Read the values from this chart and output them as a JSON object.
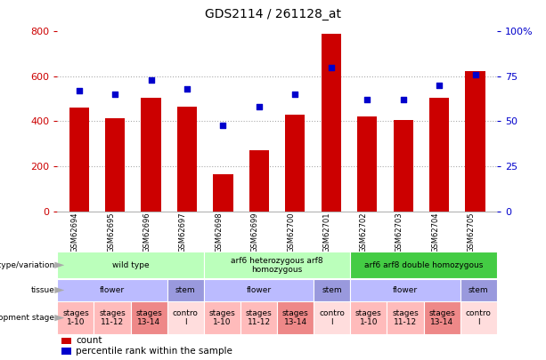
{
  "title": "GDS2114 / 261128_at",
  "samples": [
    "GSM62694",
    "GSM62695",
    "GSM62696",
    "GSM62697",
    "GSM62698",
    "GSM62699",
    "GSM62700",
    "GSM62701",
    "GSM62702",
    "GSM62703",
    "GSM62704",
    "GSM62705"
  ],
  "counts": [
    460,
    415,
    505,
    465,
    165,
    270,
    430,
    790,
    420,
    405,
    505,
    625
  ],
  "percentiles": [
    67,
    65,
    73,
    68,
    48,
    58,
    65,
    80,
    62,
    62,
    70,
    76
  ],
  "ylim_left": [
    0,
    800
  ],
  "ylim_right": [
    0,
    100
  ],
  "yticks_left": [
    0,
    200,
    400,
    600,
    800
  ],
  "yticks_right": [
    0,
    25,
    50,
    75,
    100
  ],
  "bar_color": "#cc0000",
  "dot_color": "#0000cc",
  "axis_color_left": "#cc0000",
  "axis_color_right": "#0000cc",
  "bg_color": "#ffffff",
  "grid_color": "#aaaaaa",
  "genotype_rows": [
    {
      "label": "wild type",
      "start": 0,
      "end": 4,
      "color": "#bbffbb"
    },
    {
      "label": "arf6 heterozygous arf8\nhomozygous",
      "start": 4,
      "end": 8,
      "color": "#bbffbb"
    },
    {
      "label": "arf6 arf8 double homozygous",
      "start": 8,
      "end": 12,
      "color": "#44cc44"
    }
  ],
  "tissue_rows": [
    {
      "label": "flower",
      "start": 0,
      "end": 3,
      "color": "#bbbbff"
    },
    {
      "label": "stem",
      "start": 3,
      "end": 4,
      "color": "#9999dd"
    },
    {
      "label": "flower",
      "start": 4,
      "end": 7,
      "color": "#bbbbff"
    },
    {
      "label": "stem",
      "start": 7,
      "end": 8,
      "color": "#9999dd"
    },
    {
      "label": "flower",
      "start": 8,
      "end": 11,
      "color": "#bbbbff"
    },
    {
      "label": "stem",
      "start": 11,
      "end": 12,
      "color": "#9999dd"
    }
  ],
  "dev_stage_rows": [
    {
      "label": "stages\n1-10",
      "start": 0,
      "end": 1,
      "color": "#ffbbbb"
    },
    {
      "label": "stages\n11-12",
      "start": 1,
      "end": 2,
      "color": "#ffbbbb"
    },
    {
      "label": "stages\n13-14",
      "start": 2,
      "end": 3,
      "color": "#ee8888"
    },
    {
      "label": "contro\nl",
      "start": 3,
      "end": 4,
      "color": "#ffdddd"
    },
    {
      "label": "stages\n1-10",
      "start": 4,
      "end": 5,
      "color": "#ffbbbb"
    },
    {
      "label": "stages\n11-12",
      "start": 5,
      "end": 6,
      "color": "#ffbbbb"
    },
    {
      "label": "stages\n13-14",
      "start": 6,
      "end": 7,
      "color": "#ee8888"
    },
    {
      "label": "contro\nl",
      "start": 7,
      "end": 8,
      "color": "#ffdddd"
    },
    {
      "label": "stages\n1-10",
      "start": 8,
      "end": 9,
      "color": "#ffbbbb"
    },
    {
      "label": "stages\n11-12",
      "start": 9,
      "end": 10,
      "color": "#ffbbbb"
    },
    {
      "label": "stages\n13-14",
      "start": 10,
      "end": 11,
      "color": "#ee8888"
    },
    {
      "label": "contro\nl",
      "start": 11,
      "end": 12,
      "color": "#ffdddd"
    }
  ],
  "row_labels": [
    "genotype/variation",
    "tissue",
    "development stage"
  ],
  "legend_items": [
    {
      "label": "count",
      "color": "#cc0000"
    },
    {
      "label": "percentile rank within the sample",
      "color": "#0000cc"
    }
  ],
  "xtick_bg": "#cccccc"
}
